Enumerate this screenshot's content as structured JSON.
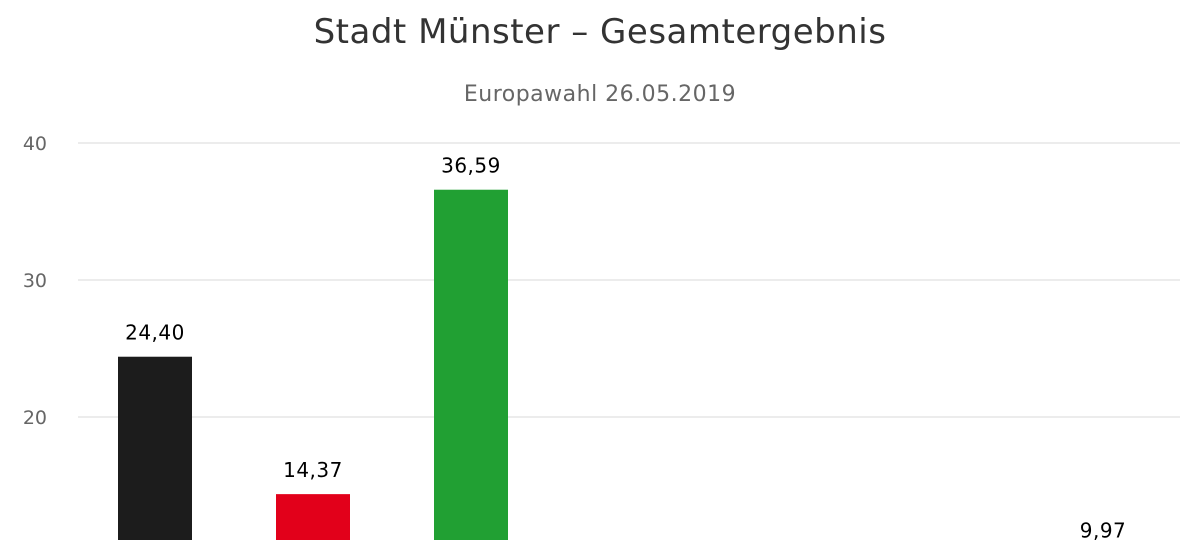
{
  "chart_data": {
    "type": "bar",
    "title": "Stadt Münster – Gesamtergebnis",
    "subtitle": "Europawahl 26.05.2019",
    "xlabel": "",
    "ylabel": "",
    "ylim": [
      10,
      40
    ],
    "yticks": [
      20,
      30,
      40
    ],
    "ytick_labels": [
      "20",
      "30",
      "40"
    ],
    "grid": true,
    "legend": "none",
    "categories": [
      "",
      "",
      "",
      "",
      "",
      "",
      ""
    ],
    "values": [
      24.4,
      14.37,
      36.59,
      null,
      null,
      null,
      9.97
    ],
    "value_labels": [
      "24,40",
      "14,37",
      "36,59",
      "",
      "",
      "",
      "9,97"
    ],
    "colors": [
      "#1c1c1c",
      "#e2001a",
      "#21a033",
      "#cccccc",
      "#cccccc",
      "#cccccc",
      "#cccccc"
    ]
  }
}
